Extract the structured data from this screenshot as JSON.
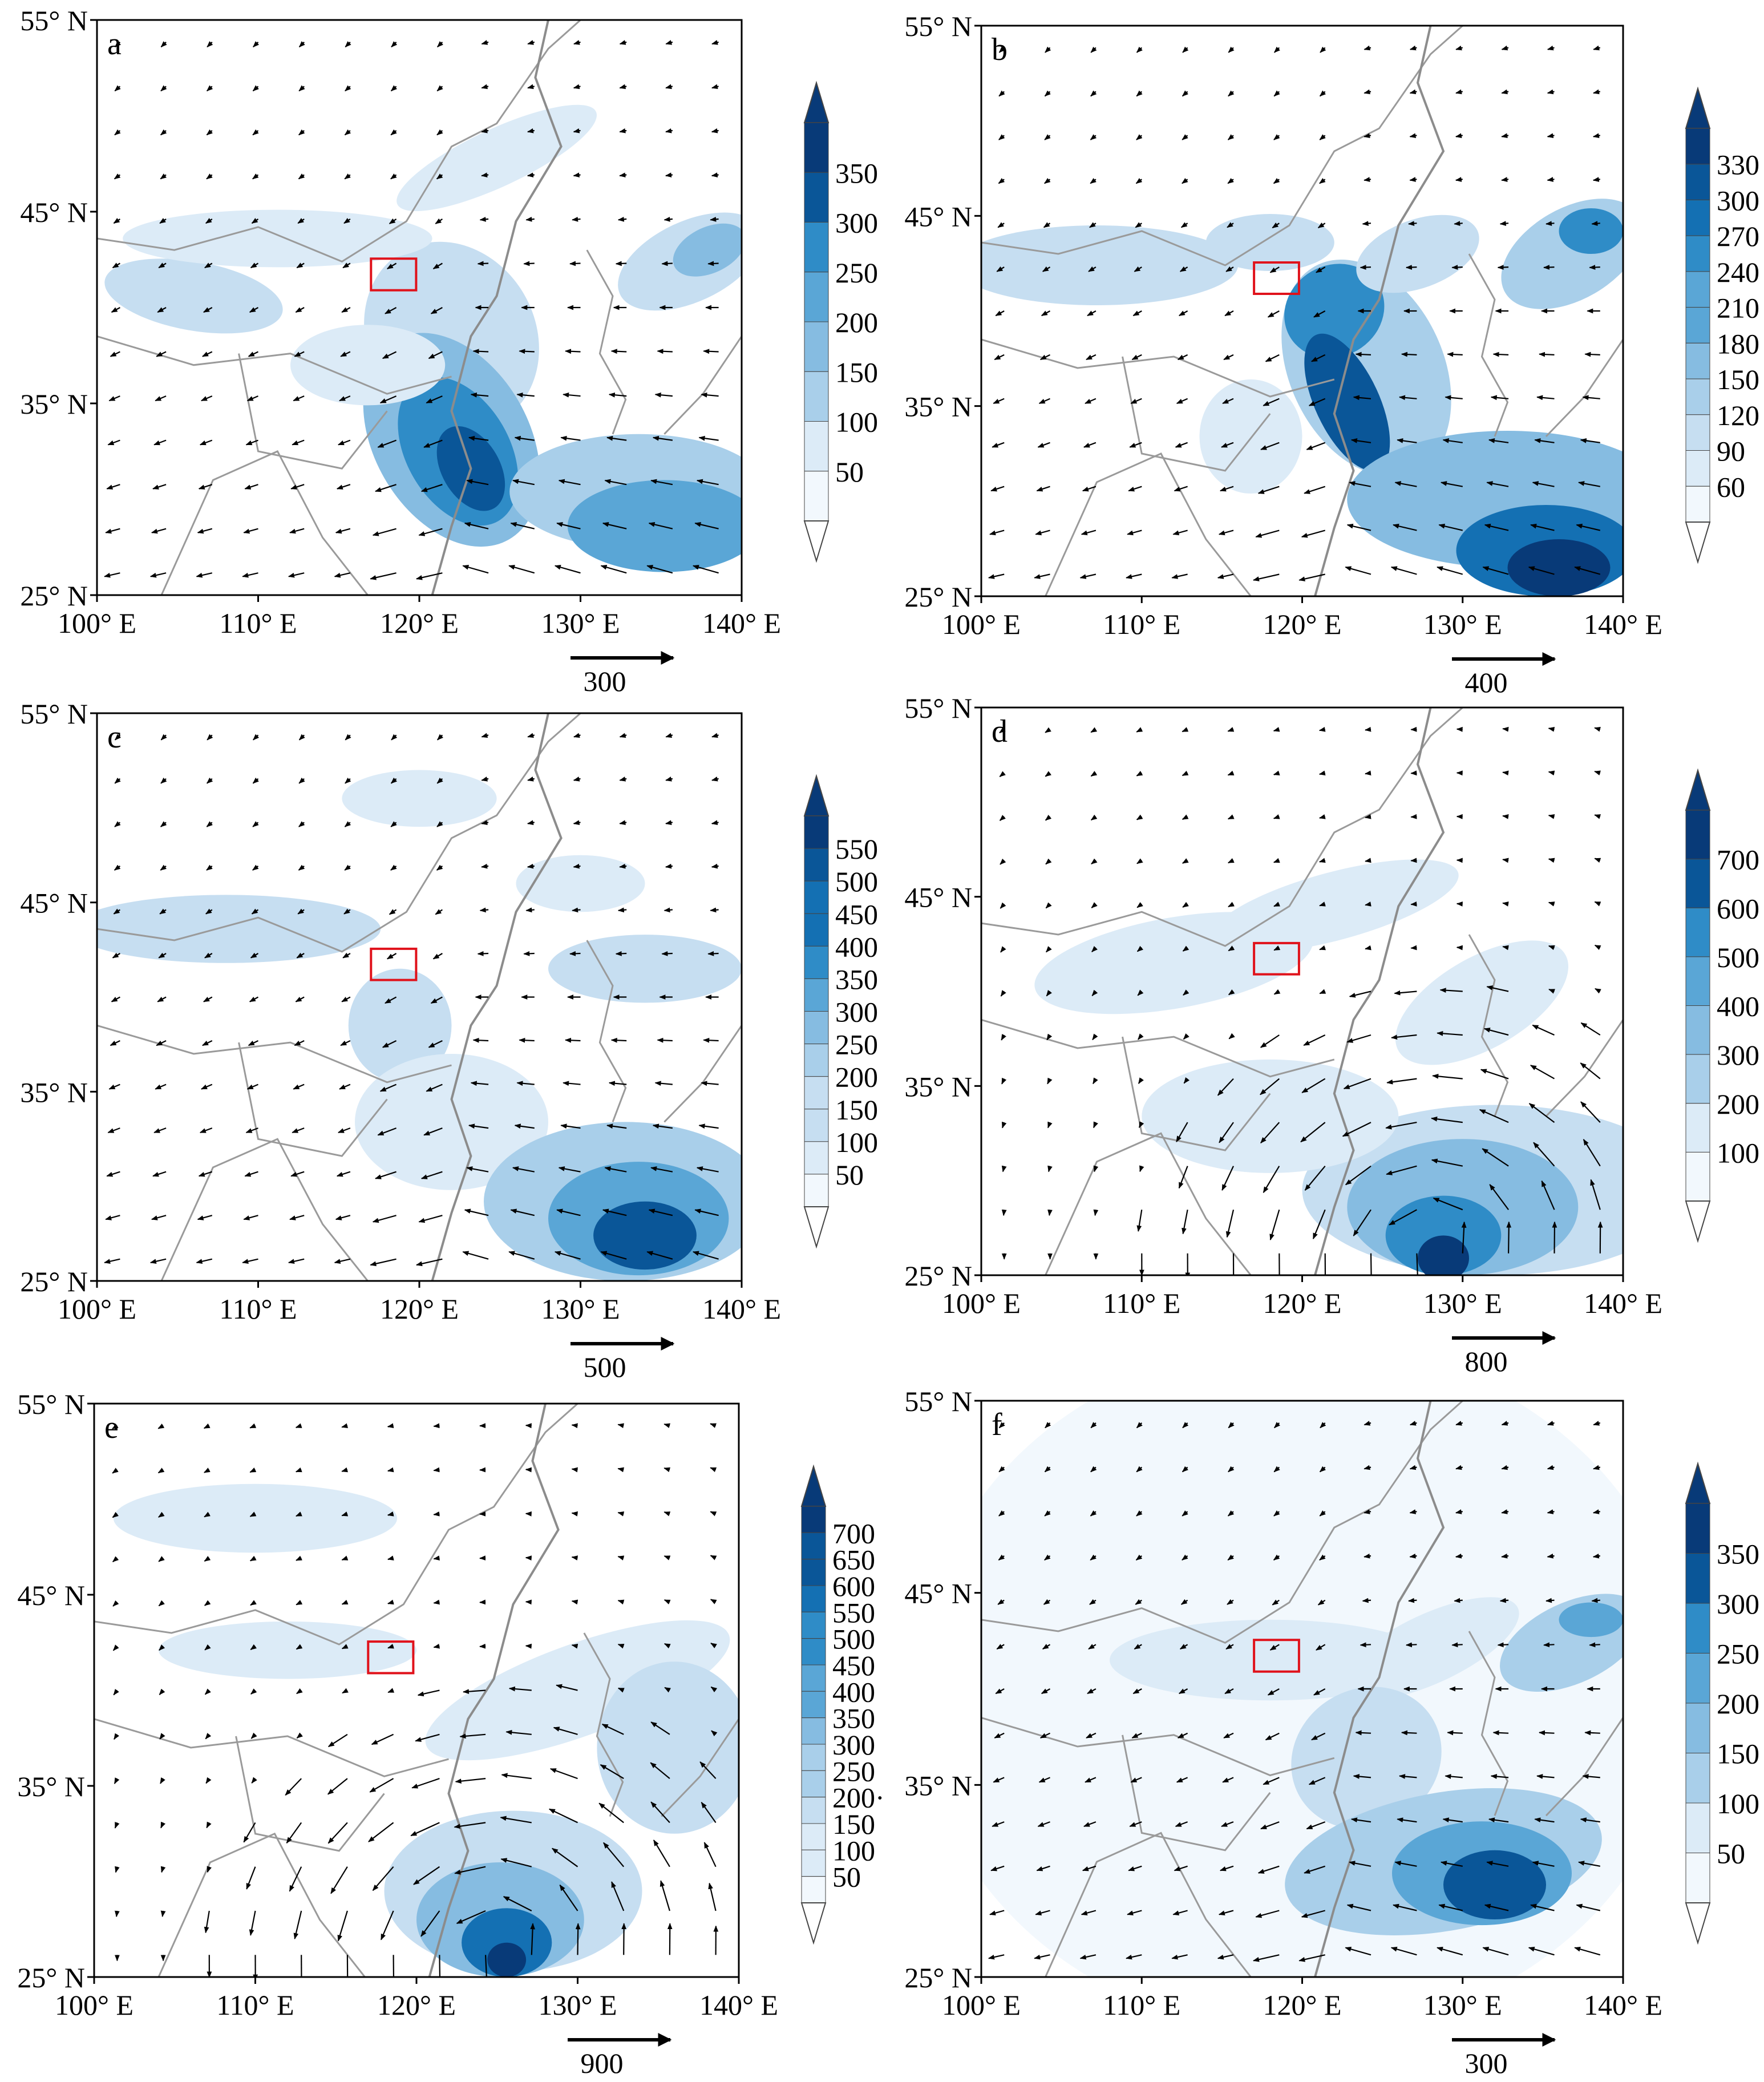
{
  "panels": [
    {
      "letter": "a",
      "lat_labels": [
        "55° N",
        "45° N",
        "35° N",
        "25° N"
      ],
      "lon_labels": [
        "100° E",
        "110° E",
        "120° E",
        "130° E",
        "140° E"
      ],
      "colorbar": [
        "350",
        "300",
        "250",
        "200",
        "150",
        "100",
        "50"
      ],
      "reference_vector": "300",
      "wind_direction": "from-east-to-west"
    },
    {
      "letter": "b",
      "lat_labels": [
        "55° N",
        "45° N",
        "35° N",
        "25° N"
      ],
      "lon_labels": [
        "100° E",
        "110° E",
        "120° E",
        "130° E",
        "140° E"
      ],
      "colorbar": [
        "330",
        "300",
        "270",
        "240",
        "210",
        "180",
        "150",
        "120",
        "90",
        "60"
      ],
      "reference_vector": "400",
      "wind_direction": "from-east-to-west"
    },
    {
      "letter": "c",
      "lat_labels": [
        "55° N",
        "45° N",
        "35° N",
        "25° N"
      ],
      "lon_labels": [
        "100° E",
        "110° E",
        "120° E",
        "130° E",
        "140° E"
      ],
      "colorbar": [
        "550",
        "500",
        "450",
        "400",
        "350",
        "300",
        "250",
        "200",
        "150",
        "100",
        "50"
      ],
      "reference_vector": "500",
      "wind_direction": "from-east-to-west"
    },
    {
      "letter": "d",
      "lat_labels": [
        "55° N",
        "45° N",
        "35° N",
        "25° N"
      ],
      "lon_labels": [
        "100° E",
        "110° E",
        "120° E",
        "130° E",
        "140° E"
      ],
      "colorbar": [
        "700",
        "600",
        "500",
        "400",
        "300",
        "200",
        "100"
      ],
      "reference_vector": "800",
      "wind_direction": "cyclonic"
    },
    {
      "letter": "e",
      "lat_labels": [
        "55° N",
        "45° N",
        "35° N",
        "25° N"
      ],
      "lon_labels": [
        "100° E",
        "110° E",
        "120° E",
        "130° E",
        "140° E"
      ],
      "colorbar": [
        "700",
        "650",
        "600",
        "550",
        "500",
        "450",
        "400",
        "350",
        "300",
        "250",
        "200·",
        "150",
        "100",
        "50"
      ],
      "reference_vector": "900",
      "wind_direction": "cyclonic"
    },
    {
      "letter": "f",
      "lat_labels": [
        "55° N",
        "45° N",
        "35° N",
        "25° N"
      ],
      "lon_labels": [
        "100° E",
        "110° E",
        "120° E",
        "130° E",
        "140° E"
      ],
      "colorbar": [
        "350",
        "300",
        "250",
        "200",
        "150",
        "100",
        "50"
      ],
      "reference_vector": "300",
      "wind_direction": "from-east-to-west"
    }
  ],
  "colors": {
    "frame": "#000000",
    "boundary": "#9a9a9a",
    "coast": "#8c8c8c",
    "study_box": "#e0121b",
    "blue_ramp": [
      "#f2f8fd",
      "#dcebf7",
      "#c6def1",
      "#a9cfea",
      "#86bce1",
      "#5aa6d6",
      "#2f8cc7",
      "#1470b3",
      "#0a5698",
      "#083a78"
    ]
  },
  "icons": [
    "wind-vector-arrow",
    "study-area-box"
  ]
}
